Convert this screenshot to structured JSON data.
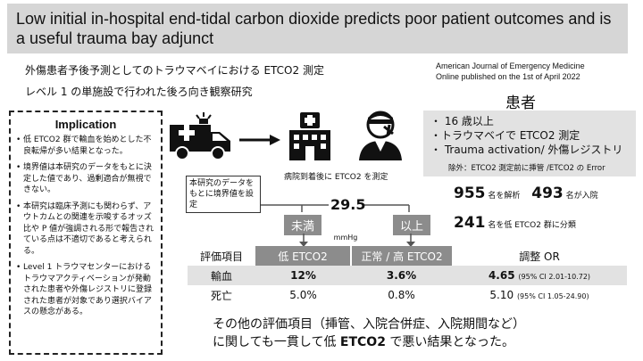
{
  "title": "Low initial in-hospital end-tidal carbon dioxide predicts poor patient outcomes and is a useful trauma bay adjunct",
  "subtitle_1": "外傷患者予後予測としてのトラウマベイにおける ETCO2 測定",
  "subtitle_2": "レベル 1 の単施設で行われた後ろ向き観察研究",
  "journal": {
    "name": "American Journal of Emergency Medicine",
    "published": "Online published on the 1st of April 2022"
  },
  "implication": {
    "heading": "Implication",
    "items": [
      "低 ETCO2 群で輸血を始めとした不良転帰が多い結果となった。",
      "境界値は本研究のデータをもとに決定した値であり、過剰適合が無視できない。",
      "本研究は臨床予測にも関わらず、アウトカムとの関連を示唆するオッズ比や P 値が強調される形で報告されている点は不適切であると考えられる。",
      "Level 1 トラウマセンターにおけるトラウマアクティベーションが発動された患者や外傷レジストリに登録された患者が対象であり選択バイアスの懸念がある。"
    ]
  },
  "patients": {
    "heading": "患者",
    "criteria": [
      "・ 16 歳以上",
      "・トラウマベイで ETCO2 測定",
      "・ Trauma activation/ 外傷レジストリ"
    ],
    "exclusion": "除外：ETCO2 測定前に挿管 /ETCO2 の Error"
  },
  "stats": {
    "analyzed_n": "955",
    "analyzed_label": "名を解析",
    "admitted_n": "493",
    "admitted_label": "名が入院",
    "low_n": "241",
    "low_label": "名を低 ETCO2 群に分類"
  },
  "flow": {
    "arrival_caption": "病院到着後に ETCO2 を測定",
    "data_note": "本研究のデータをもとに境界値を設定",
    "threshold_value": "29.5",
    "threshold_unit": "mmHg",
    "below_label": "未満",
    "above_label": "以上"
  },
  "table": {
    "headers": [
      "評価項目",
      "低 ETCO2",
      "正常 / 高 ETCO2",
      "調整 OR"
    ],
    "rows": [
      {
        "item": "輸血",
        "low": "12%",
        "normal": "3.6%",
        "or": "4.65",
        "ci": "(95% CI 2.01-10.72)"
      },
      {
        "item": "死亡",
        "low": "5.0%",
        "normal": "0.8%",
        "or": "5.10",
        "ci": "(95% CI 1.05-24.90)"
      }
    ]
  },
  "conclusion": {
    "line1": "その他の評価項目（挿管、入院合併症、入院期間など）",
    "line2_prefix": "に関しても一貫して低 ",
    "line2_bold": "ETCO2",
    "line2_suffix": " で悪い結果となった。"
  },
  "icons": [
    "ambulance-icon",
    "arrow-right-icon",
    "hospital-icon",
    "patient-icon"
  ],
  "colors": {
    "banner_bg": "#d6d6d6",
    "tag_bg": "#8c8c8c",
    "panel_bg": "#e2e2e2"
  }
}
